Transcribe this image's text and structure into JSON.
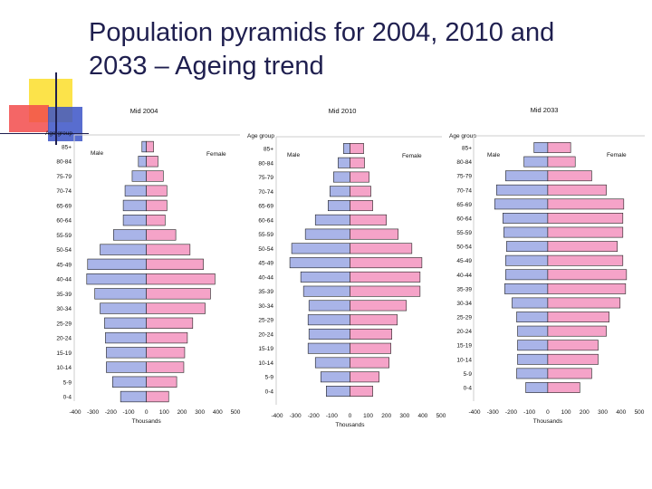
{
  "slide": {
    "title_line1": "Population pyramids for 2004, 2010 and",
    "title_line2": "2033 – Ageing trend"
  },
  "colors": {
    "male": "#a9b4e8",
    "female": "#f5a3c8",
    "bar_stroke": "#222222",
    "title": "#1f1f4f",
    "deco_yellow": "#fce34a",
    "deco_red": "#f24b4b",
    "deco_blue": "#3b53c7"
  },
  "chart_data": [
    {
      "type": "bar",
      "title": "Mid 2004",
      "ylabel": "Age group",
      "xlabel": "Thousands",
      "male_label": "Male",
      "female_label": "Female",
      "categories": [
        "85+",
        "80-84",
        "75-79",
        "70-74",
        "65-69",
        "60-64",
        "55-59",
        "50-54",
        "45-49",
        "40-44",
        "35-39",
        "30-34",
        "25-29",
        "20-24",
        "15-19",
        "10-14",
        "5-9",
        "0-4"
      ],
      "xticks": [
        "-400",
        "-300",
        "-200",
        "-100",
        "0",
        "100",
        "200",
        "300",
        "400",
        "500"
      ],
      "xlim": [
        -400,
        500
      ],
      "series": [
        {
          "name": "Male",
          "values": [
            -25,
            -45,
            -80,
            -120,
            -130,
            -130,
            -185,
            -260,
            -330,
            -335,
            -290,
            -260,
            -235,
            -230,
            -225,
            -225,
            -190,
            -145
          ]
        },
        {
          "name": "Female",
          "values": [
            40,
            65,
            95,
            115,
            115,
            105,
            165,
            245,
            320,
            385,
            360,
            330,
            260,
            230,
            215,
            210,
            170,
            125
          ]
        }
      ]
    },
    {
      "type": "bar",
      "title": "Mid 2010",
      "ylabel": "Age group",
      "xlabel": "Thousands",
      "male_label": "Male",
      "female_label": "Female",
      "categories": [
        "85+",
        "80-84",
        "75-79",
        "70-74",
        "65-69",
        "60-64",
        "55-59",
        "50-54",
        "45-49",
        "40-44",
        "35-39",
        "30-34",
        "25-29",
        "20-24",
        "15-19",
        "10-14",
        "5-9",
        "0-4"
      ],
      "xticks": [
        "-400",
        "-300",
        "-200",
        "-100",
        "0",
        "100",
        "200",
        "300",
        "400",
        "500"
      ],
      "xlim": [
        -400,
        500
      ],
      "series": [
        {
          "name": "Male",
          "values": [
            -35,
            -65,
            -90,
            -110,
            -120,
            -190,
            -245,
            -320,
            -330,
            -270,
            -255,
            -225,
            -230,
            -225,
            -230,
            -190,
            -160,
            -130
          ]
        },
        {
          "name": "Female",
          "values": [
            75,
            80,
            105,
            115,
            125,
            200,
            265,
            340,
            395,
            385,
            385,
            310,
            260,
            230,
            225,
            215,
            160,
            125
          ]
        }
      ]
    },
    {
      "type": "bar",
      "title": "Mid 2033",
      "ylabel": "Age group",
      "xlabel": "Thousands",
      "male_label": "Male",
      "female_label": "Female",
      "categories": [
        "85+",
        "80-84",
        "75-79",
        "70-74",
        "65-69",
        "60-64",
        "55-59",
        "50-54",
        "45-49",
        "40-44",
        "35-39",
        "30-34",
        "25-29",
        "20-24",
        "15-19",
        "10-14",
        "5-9",
        "0-4"
      ],
      "xticks": [
        "-400",
        "-300",
        "-200",
        "-100",
        "0",
        "100",
        "200",
        "300",
        "400",
        "500"
      ],
      "xlim": [
        -400,
        500
      ],
      "series": [
        {
          "name": "Male",
          "values": [
            -75,
            -130,
            -230,
            -280,
            -290,
            -245,
            -240,
            -225,
            -230,
            -230,
            -235,
            -195,
            -170,
            -165,
            -165,
            -165,
            -170,
            -120
          ]
        },
        {
          "name": "Female",
          "values": [
            125,
            150,
            240,
            320,
            415,
            410,
            410,
            380,
            410,
            430,
            425,
            395,
            335,
            320,
            275,
            275,
            240,
            175
          ]
        }
      ]
    }
  ]
}
